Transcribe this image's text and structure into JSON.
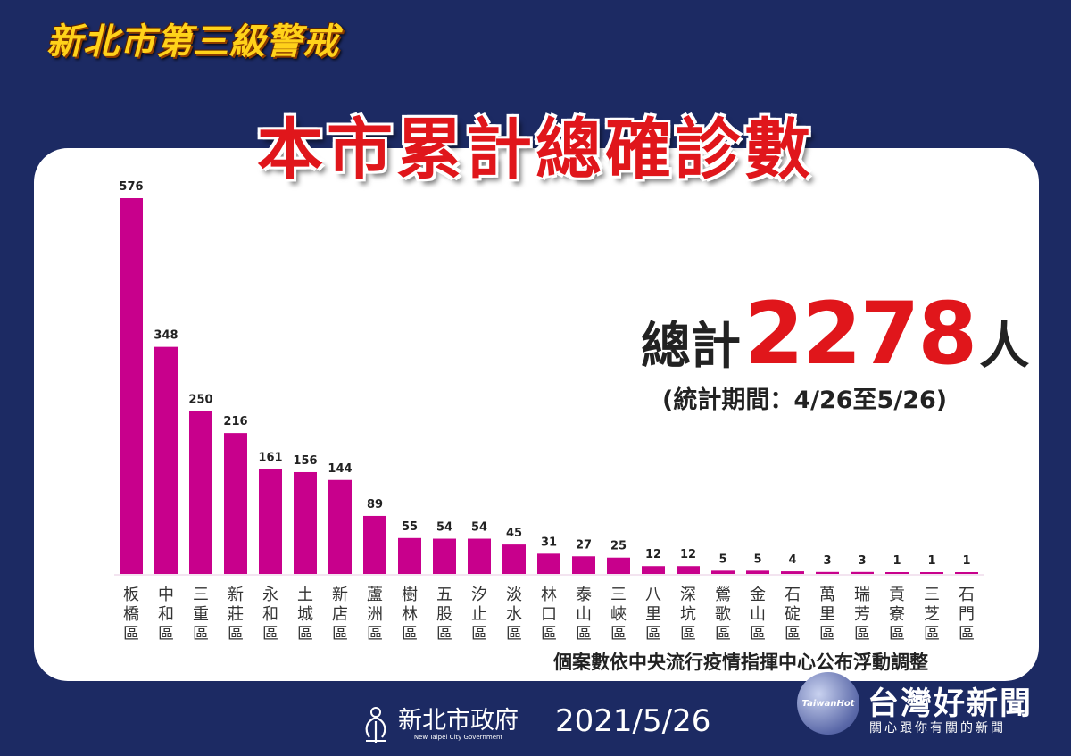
{
  "header": {
    "top_title": "新北市第三級警戒",
    "main_title": "本市累計總確診數"
  },
  "total": {
    "label": "總計",
    "value": "2278",
    "unit": "人",
    "period": "(統計期間：4/26至5/26)"
  },
  "footnote": "個案數依中央流行疫情指揮中心公布浮動調整",
  "footer": {
    "gov_name": "新北市政府",
    "gov_en": "New Taipei City Government",
    "date": "2021/5/26"
  },
  "watermark": {
    "logo_text": "TaiwanHot",
    "name": "台灣好新聞",
    "slogan": "關心跟你有關的新聞"
  },
  "colors": {
    "bar": "#c8008c",
    "background": "#1c2a63",
    "accent_red": "#e0161b",
    "title_yellow": "#ffd21a"
  },
  "chart_data": {
    "type": "bar",
    "categories": [
      "板橋區",
      "中和區",
      "三重區",
      "新莊區",
      "永和區",
      "土城區",
      "新店區",
      "蘆洲區",
      "樹林區",
      "五股區",
      "汐止區",
      "淡水區",
      "林口區",
      "泰山區",
      "三峽區",
      "八里區",
      "深坑區",
      "鶯歌區",
      "金山區",
      "石碇區",
      "萬里區",
      "瑞芳區",
      "貢寮區",
      "三芝區",
      "石門區"
    ],
    "values": [
      576,
      348,
      250,
      216,
      161,
      156,
      144,
      89,
      55,
      54,
      54,
      45,
      31,
      27,
      25,
      12,
      12,
      5,
      5,
      4,
      3,
      3,
      1,
      1,
      1
    ],
    "ylim": [
      0,
      576
    ]
  }
}
